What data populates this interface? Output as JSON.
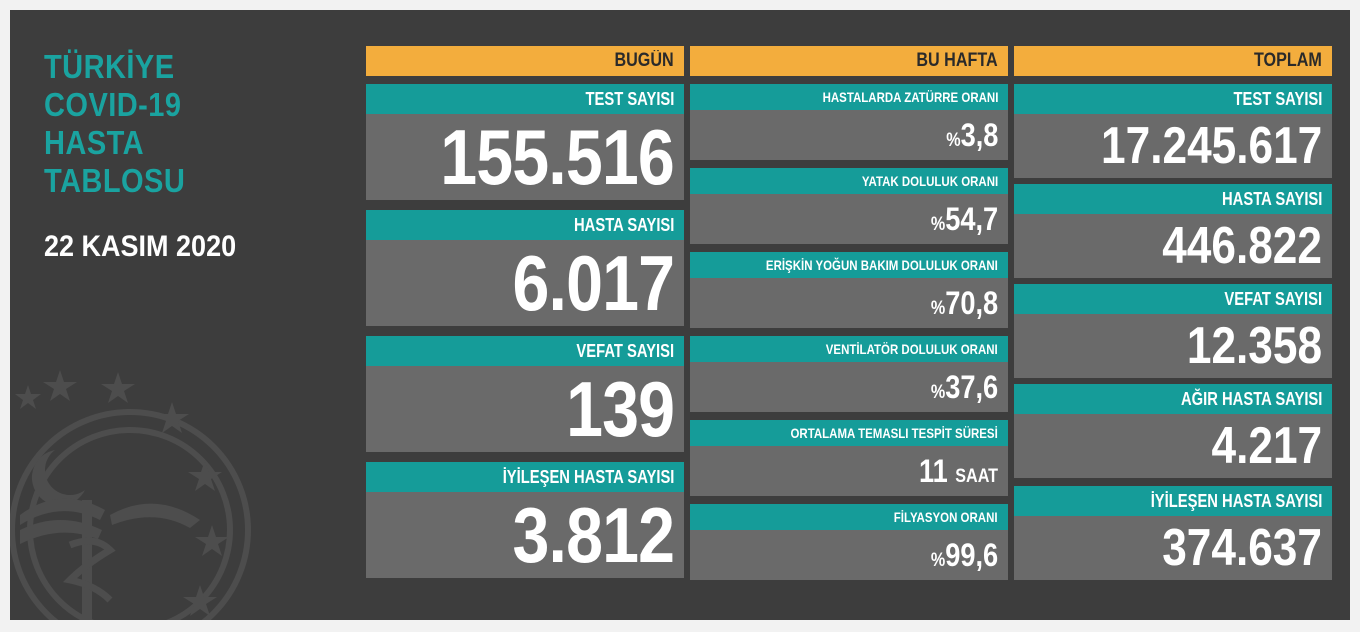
{
  "title": {
    "lines": [
      "TÜRKİYE",
      "COVID-19",
      "HASTA",
      "TABLOSU"
    ],
    "date": "22 KASIM 2020"
  },
  "colors": {
    "background": "#3d3d3d",
    "header": "#f3ad3d",
    "label": "#159c99",
    "value_bg": "#6a6a6a",
    "title_text": "#1aa3a0"
  },
  "emblem": {
    "icon": "ministry-of-health-emblem-icon"
  },
  "today": {
    "header": "BUGÜN",
    "items": [
      {
        "label": "TEST SAYISI",
        "value": "155.516"
      },
      {
        "label": "HASTA SAYISI",
        "value": "6.017"
      },
      {
        "label": "VEFAT SAYISI",
        "value": "139"
      },
      {
        "label": "İYİLEŞEN HASTA SAYISI",
        "value": "3.812"
      }
    ]
  },
  "week": {
    "header": "BU HAFTA",
    "items": [
      {
        "label": "HASTALARDA ZATÜRRE ORANI",
        "prefix": "%",
        "value": "3,8",
        "suffix": ""
      },
      {
        "label": "YATAK DOLULUK ORANI",
        "prefix": "%",
        "value": "54,7",
        "suffix": ""
      },
      {
        "label": "ERİŞKİN YOĞUN BAKIM DOLULUK ORANI",
        "prefix": "%",
        "value": "70,8",
        "suffix": ""
      },
      {
        "label": "VENTİLATÖR DOLULUK ORANI",
        "prefix": "%",
        "value": "37,6",
        "suffix": ""
      },
      {
        "label": "ORTALAMA TEMASLI TESPİT SÜRESİ",
        "prefix": "",
        "value": "11",
        "suffix": "SAAT"
      },
      {
        "label": "FİLYASYON ORANI",
        "prefix": "%",
        "value": "99,6",
        "suffix": ""
      }
    ]
  },
  "total": {
    "header": "TOPLAM",
    "items": [
      {
        "label": "TEST SAYISI",
        "value": "17.245.617"
      },
      {
        "label": "HASTA SAYISI",
        "value": "446.822"
      },
      {
        "label": "VEFAT SAYISI",
        "value": "12.358"
      },
      {
        "label": "AĞIR HASTA SAYISI",
        "value": "4.217"
      },
      {
        "label": "İYİLEŞEN HASTA SAYISI",
        "value": "374.637"
      }
    ]
  }
}
